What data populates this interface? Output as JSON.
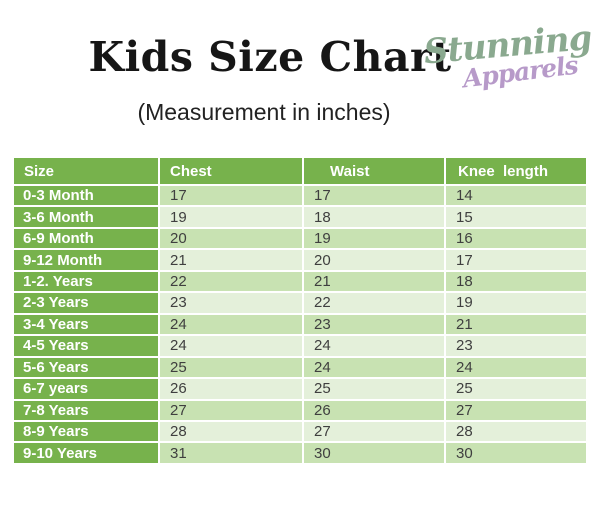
{
  "header": {
    "title": "Kids Size Chart",
    "subtitle": "(Measurement in inches)",
    "logo": {
      "line1": "Stunning",
      "line2": "Apparels",
      "line1_color": "#8aa98f",
      "line2_color": "#b79ac9"
    }
  },
  "colors": {
    "table_header_green": "#77b24c",
    "size_column_green": "#77b24c",
    "row_band_dark": "#c8e2b2",
    "row_band_light": "#e4f0da",
    "header_text": "#ffffff",
    "cell_text": "#3f3f3f",
    "title_text": "#161616"
  },
  "chart_data": {
    "type": "table",
    "title": "Kids Size Chart",
    "subtitle": "(Measurement in inches)",
    "columns": [
      "Size",
      "Chest",
      "Waist",
      "Knee  length"
    ],
    "rows": [
      {
        "size": "0-3 Month",
        "chest": "17",
        "waist": "17",
        "knee": "14"
      },
      {
        "size": "3-6 Month",
        "chest": "19",
        "waist": "18",
        "knee": "15"
      },
      {
        "size": "6-9 Month",
        "chest": "20",
        "waist": "19",
        "knee": "16"
      },
      {
        "size": "9-12 Month",
        "chest": "21",
        "waist": "20",
        "knee": "17"
      },
      {
        "size": "1-2. Years",
        "chest": "22",
        "waist": "21",
        "knee": "18"
      },
      {
        "size": "2-3 Years",
        "chest": "23",
        "waist": "22",
        "knee": "19"
      },
      {
        "size": "3-4 Years",
        "chest": "24",
        "waist": "23",
        "knee": "21"
      },
      {
        "size": "4-5 Years",
        "chest": "24",
        "waist": "24",
        "knee": "23"
      },
      {
        "size": "5-6 Years",
        "chest": "25",
        "waist": "24",
        "knee": "24"
      },
      {
        "size": "6-7 years",
        "chest": "26",
        "waist": "25",
        "knee": "25"
      },
      {
        "size": "7-8 Years",
        "chest": "27",
        "waist": "26",
        "knee": "27"
      },
      {
        "size": "8-9 Years",
        "chest": "28",
        "waist": "27",
        "knee": "28"
      },
      {
        "size": "9-10 Years",
        "chest": "31",
        "waist": "30",
        "knee": "30"
      }
    ]
  }
}
